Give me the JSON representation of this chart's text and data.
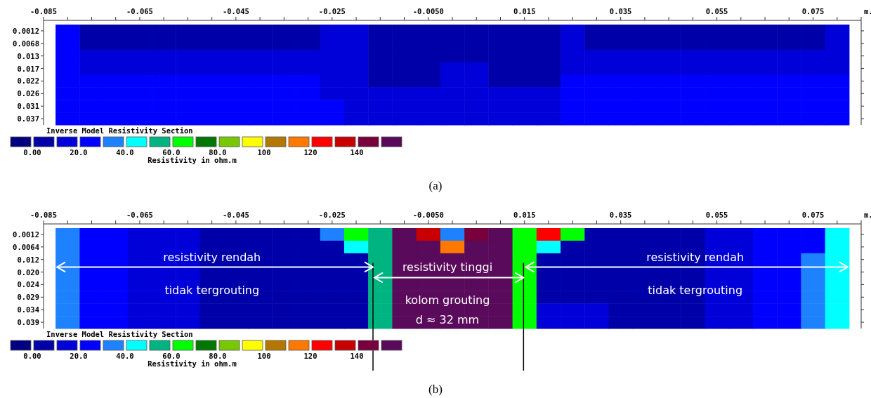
{
  "chart_data": [
    {
      "type": "heatmap",
      "title": "(a)",
      "xlabel": "m.",
      "legend_title": "Inverse Model Resistivity Section",
      "clabel": "Resistivity in ohm.m",
      "x": [
        -0.08,
        -0.075,
        -0.07,
        -0.065,
        -0.06,
        -0.055,
        -0.05,
        -0.045,
        -0.04,
        -0.035,
        -0.03,
        -0.025,
        -0.02,
        -0.015,
        -0.01,
        -0.005,
        0,
        0.005,
        0.01,
        0.015,
        0.02,
        0.025,
        0.03,
        0.035,
        0.04,
        0.045,
        0.05,
        0.055,
        0.06,
        0.065,
        0.07,
        0.075,
        0.08
      ],
      "xlim": [
        -0.085,
        0.085
      ],
      "xticks": [
        -0.085,
        {
          "value": -0.08,
          "label": null
        },
        {
          "value": -0.075,
          "label": null
        },
        {
          "value": -0.07,
          "label": null
        },
        -0.065,
        {
          "value": -0.06,
          "label": null
        },
        {
          "value": -0.055,
          "label": null
        },
        {
          "value": -0.05,
          "label": null
        },
        -0.045,
        {
          "value": -0.04,
          "label": null
        },
        {
          "value": -0.035,
          "label": null
        },
        {
          "value": -0.03,
          "label": null
        },
        -0.025,
        {
          "value": -0.02,
          "label": null
        },
        {
          "value": -0.015,
          "label": null
        },
        {
          "value": -0.01,
          "label": null
        },
        {
          "value": -0.005,
          "label": "-0.0050"
        },
        {
          "value": 0,
          "label": null
        },
        {
          "value": 0.005,
          "label": null
        },
        {
          "value": 0.01,
          "label": null
        },
        0.015,
        {
          "value": 0.02,
          "label": null
        },
        {
          "value": 0.025,
          "label": null
        },
        {
          "value": 0.03,
          "label": null
        },
        0.035,
        {
          "value": 0.04,
          "label": null
        },
        {
          "value": 0.045,
          "label": null
        },
        {
          "value": 0.05,
          "label": null
        },
        0.055,
        {
          "value": 0.06,
          "label": null
        },
        {
          "value": 0.065,
          "label": null
        },
        {
          "value": 0.07,
          "label": null
        },
        0.075,
        {
          "value": 0.08,
          "label": null
        },
        {
          "value": 0.085,
          "label": null
        }
      ],
      "y_categories": [
        "0.0012",
        "0.0068",
        "0.013",
        "0.017",
        "0.022",
        "0.026",
        "0.031",
        "0.037"
      ],
      "clim": [
        -10,
        160
      ],
      "cticks": [
        {
          "value": 0,
          "label": "0.00"
        },
        {
          "value": 20,
          "label": "20.0"
        },
        {
          "value": 40,
          "label": "40.0"
        },
        {
          "value": 60,
          "label": "60.0"
        },
        {
          "value": 80,
          "label": "80.0"
        },
        100,
        120,
        140
      ],
      "cells": [
        [
          25,
          8,
          8,
          8,
          8,
          8,
          8,
          8,
          8,
          8,
          8,
          15,
          15,
          8,
          8,
          8,
          8,
          8,
          8,
          8,
          8,
          15,
          8,
          8,
          8,
          8,
          8,
          8,
          8,
          8,
          8,
          8,
          15
        ],
        [
          25,
          8,
          8,
          8,
          8,
          8,
          8,
          8,
          8,
          8,
          8,
          15,
          15,
          8,
          8,
          8,
          8,
          8,
          8,
          8,
          8,
          15,
          8,
          8,
          8,
          8,
          8,
          8,
          8,
          8,
          8,
          8,
          15
        ],
        [
          25,
          15,
          15,
          15,
          15,
          15,
          15,
          15,
          15,
          15,
          15,
          15,
          15,
          8,
          8,
          8,
          8,
          8,
          8,
          8,
          8,
          15,
          15,
          15,
          15,
          15,
          15,
          15,
          15,
          15,
          15,
          15,
          15
        ],
        [
          25,
          15,
          15,
          15,
          15,
          15,
          15,
          15,
          15,
          15,
          15,
          15,
          15,
          8,
          8,
          8,
          15,
          15,
          8,
          8,
          8,
          15,
          15,
          15,
          15,
          15,
          15,
          15,
          15,
          15,
          15,
          15,
          15
        ],
        [
          25,
          25,
          25,
          25,
          25,
          25,
          25,
          25,
          25,
          25,
          25,
          15,
          15,
          8,
          8,
          8,
          15,
          15,
          8,
          8,
          8,
          25,
          25,
          25,
          25,
          25,
          25,
          25,
          25,
          25,
          25,
          25,
          25
        ],
        [
          25,
          25,
          25,
          25,
          25,
          25,
          25,
          25,
          25,
          25,
          25,
          15,
          15,
          15,
          15,
          15,
          15,
          15,
          15,
          15,
          15,
          25,
          25,
          25,
          25,
          25,
          25,
          25,
          25,
          25,
          25,
          25,
          25
        ],
        [
          25,
          25,
          25,
          25,
          25,
          25,
          25,
          25,
          25,
          25,
          25,
          25,
          15,
          15,
          15,
          15,
          15,
          15,
          15,
          15,
          15,
          25,
          25,
          25,
          25,
          25,
          25,
          25,
          25,
          25,
          25,
          25,
          25
        ],
        [
          25,
          25,
          25,
          25,
          25,
          25,
          25,
          25,
          25,
          25,
          25,
          25,
          15,
          15,
          15,
          15,
          15,
          15,
          15,
          15,
          15,
          25,
          25,
          25,
          25,
          25,
          25,
          25,
          25,
          25,
          25,
          25,
          25
        ]
      ]
    },
    {
      "type": "heatmap",
      "title": "(b)",
      "xlabel": "m.",
      "legend_title": "Inverse Model Resistivity Section",
      "clabel": "Resistivity in ohm.m",
      "x": [
        -0.08,
        -0.075,
        -0.07,
        -0.065,
        -0.06,
        -0.055,
        -0.05,
        -0.045,
        -0.04,
        -0.035,
        -0.03,
        -0.025,
        -0.02,
        -0.015,
        -0.01,
        -0.005,
        0,
        0.005,
        0.01,
        0.015,
        0.02,
        0.025,
        0.03,
        0.035,
        0.04,
        0.045,
        0.05,
        0.055,
        0.06,
        0.065,
        0.07,
        0.075,
        0.08
      ],
      "xlim": [
        -0.085,
        0.085
      ],
      "xticks": [
        -0.085,
        {
          "value": -0.08,
          "label": null
        },
        {
          "value": -0.075,
          "label": null
        },
        {
          "value": -0.07,
          "label": null
        },
        -0.065,
        {
          "value": -0.06,
          "label": null
        },
        {
          "value": -0.055,
          "label": null
        },
        {
          "value": -0.05,
          "label": null
        },
        -0.045,
        {
          "value": -0.04,
          "label": null
        },
        {
          "value": -0.035,
          "label": null
        },
        {
          "value": -0.03,
          "label": null
        },
        -0.025,
        {
          "value": -0.02,
          "label": null
        },
        {
          "value": -0.015,
          "label": null
        },
        {
          "value": -0.01,
          "label": null
        },
        {
          "value": -0.005,
          "label": "-0.0050"
        },
        {
          "value": 0,
          "label": null
        },
        {
          "value": 0.005,
          "label": null
        },
        {
          "value": 0.01,
          "label": null
        },
        0.015,
        {
          "value": 0.02,
          "label": null
        },
        {
          "value": 0.025,
          "label": null
        },
        {
          "value": 0.03,
          "label": null
        },
        0.035,
        {
          "value": 0.04,
          "label": null
        },
        {
          "value": 0.045,
          "label": null
        },
        {
          "value": 0.05,
          "label": null
        },
        0.055,
        {
          "value": 0.06,
          "label": null
        },
        {
          "value": 0.065,
          "label": null
        },
        {
          "value": 0.07,
          "label": null
        },
        0.075,
        {
          "value": 0.08,
          "label": null
        },
        {
          "value": 0.085,
          "label": null
        }
      ],
      "y_categories": [
        "0.0012",
        "0.0064",
        "0.012",
        "0.020",
        "0.024",
        "0.029",
        "0.034",
        "0.039"
      ],
      "clim": [
        -10,
        160
      ],
      "cticks": [
        {
          "value": 0,
          "label": "0.00"
        },
        {
          "value": 20,
          "label": "20.0"
        },
        {
          "value": 40,
          "label": "40.0"
        },
        {
          "value": 60,
          "label": "60.0"
        },
        {
          "value": 80,
          "label": "80.0"
        },
        100,
        120,
        140
      ],
      "cells": [
        [
          35,
          25,
          25,
          15,
          15,
          15,
          8,
          8,
          8,
          8,
          8,
          35,
          65,
          55,
          155,
          135,
          35,
          145,
          155,
          65,
          125,
          65,
          8,
          8,
          8,
          8,
          8,
          15,
          15,
          25,
          25,
          25,
          45
        ],
        [
          35,
          25,
          25,
          15,
          15,
          15,
          8,
          8,
          8,
          8,
          8,
          8,
          45,
          55,
          155,
          155,
          115,
          155,
          155,
          65,
          45,
          8,
          8,
          8,
          8,
          8,
          8,
          15,
          15,
          25,
          25,
          25,
          45
        ],
        [
          35,
          25,
          25,
          15,
          15,
          15,
          8,
          8,
          8,
          8,
          8,
          8,
          8,
          55,
          155,
          155,
          155,
          155,
          155,
          65,
          8,
          8,
          8,
          8,
          8,
          8,
          8,
          15,
          15,
          25,
          25,
          35,
          45
        ],
        [
          35,
          25,
          25,
          15,
          15,
          15,
          8,
          8,
          8,
          8,
          8,
          8,
          8,
          55,
          155,
          155,
          155,
          155,
          155,
          65,
          8,
          8,
          8,
          8,
          8,
          8,
          8,
          15,
          15,
          25,
          25,
          35,
          45
        ],
        [
          35,
          25,
          25,
          15,
          15,
          15,
          8,
          8,
          8,
          8,
          8,
          8,
          8,
          55,
          155,
          155,
          155,
          155,
          155,
          65,
          8,
          8,
          8,
          8,
          8,
          8,
          8,
          15,
          15,
          25,
          25,
          35,
          45
        ],
        [
          35,
          25,
          25,
          15,
          15,
          15,
          8,
          8,
          8,
          8,
          8,
          8,
          8,
          55,
          155,
          155,
          155,
          155,
          155,
          65,
          8,
          8,
          8,
          8,
          8,
          8,
          8,
          15,
          15,
          25,
          25,
          35,
          45
        ],
        [
          35,
          25,
          25,
          15,
          15,
          15,
          8,
          8,
          8,
          8,
          8,
          8,
          8,
          55,
          155,
          155,
          155,
          155,
          155,
          65,
          15,
          15,
          15,
          8,
          8,
          8,
          8,
          15,
          15,
          25,
          25,
          35,
          45
        ],
        [
          35,
          25,
          25,
          15,
          15,
          15,
          8,
          8,
          8,
          8,
          8,
          8,
          8,
          55,
          155,
          155,
          155,
          155,
          155,
          65,
          15,
          15,
          15,
          8,
          8,
          8,
          8,
          15,
          15,
          25,
          25,
          35,
          45
        ]
      ],
      "ref_lines": [
        {
          "axis": "x",
          "value": -0.0165,
          "color": "#000000"
        },
        {
          "axis": "x",
          "value": 0.0148,
          "color": "#000000"
        }
      ],
      "annotations": [
        "resistivity rendah",
        "tidak tergrouting",
        "resistivity tinggi",
        "kolom grouting",
        "d ≈ 32 mm",
        "resistivity rendah",
        "tidak tergrouting"
      ]
    }
  ]
}
